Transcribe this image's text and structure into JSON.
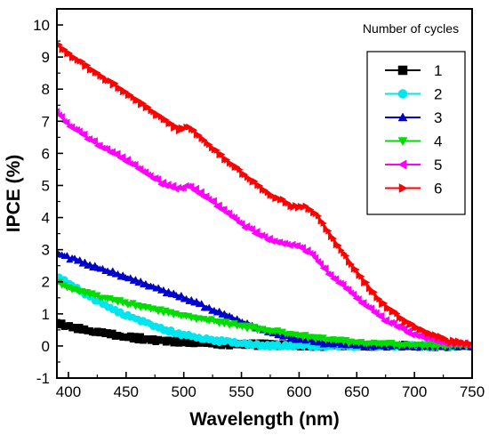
{
  "chart_data": {
    "type": "line",
    "xlabel": "Wavelength (nm)",
    "ylabel": "IPCE (%)",
    "xlim": [
      390,
      750
    ],
    "ylim": [
      -1,
      10.5
    ],
    "x_ticks": [
      400,
      450,
      500,
      550,
      600,
      650,
      700,
      750
    ],
    "y_ticks": [
      -1,
      0,
      1,
      2,
      3,
      4,
      5,
      6,
      7,
      8,
      9,
      10
    ],
    "grid": false,
    "legend": {
      "title": "Number of cycles",
      "placement": "top-right"
    },
    "series": [
      {
        "name": "1",
        "color": "#000000",
        "marker": "square",
        "x": [
          390,
          400,
          420,
          450,
          480,
          500,
          520,
          550,
          580,
          600,
          650,
          700,
          750
        ],
        "y": [
          0.7,
          0.6,
          0.45,
          0.28,
          0.18,
          0.12,
          0.08,
          0.05,
          0.03,
          0.02,
          0.0,
          0.0,
          0.0
        ]
      },
      {
        "name": "2",
        "color": "#00e5ee",
        "marker": "circle",
        "x": [
          390,
          400,
          420,
          450,
          480,
          500,
          520,
          550,
          570,
          600,
          650,
          700,
          750
        ],
        "y": [
          2.2,
          1.95,
          1.5,
          0.95,
          0.55,
          0.35,
          0.2,
          0.07,
          0.02,
          0.0,
          0.0,
          0.0,
          0.0
        ]
      },
      {
        "name": "3",
        "color": "#0000cc",
        "marker": "triangle-up",
        "x": [
          390,
          400,
          420,
          450,
          480,
          500,
          520,
          550,
          575,
          600,
          625,
          650,
          700,
          750
        ],
        "y": [
          2.9,
          2.75,
          2.5,
          2.15,
          1.75,
          1.5,
          1.2,
          0.75,
          0.42,
          0.2,
          0.07,
          0.02,
          0.0,
          0.0
        ]
      },
      {
        "name": "4",
        "color": "#00dd00",
        "marker": "triangle-down",
        "x": [
          390,
          400,
          420,
          450,
          480,
          500,
          520,
          550,
          580,
          600,
          630,
          650,
          700,
          750
        ],
        "y": [
          2.0,
          1.8,
          1.6,
          1.35,
          1.1,
          0.95,
          0.82,
          0.62,
          0.45,
          0.33,
          0.18,
          0.1,
          0.02,
          0.0
        ]
      },
      {
        "name": "5",
        "color": "#ff00ff",
        "marker": "triangle-left",
        "x": [
          390,
          400,
          420,
          450,
          480,
          495,
          505,
          520,
          550,
          575,
          600,
          610,
          625,
          650,
          675,
          700,
          725,
          750
        ],
        "y": [
          7.3,
          6.9,
          6.4,
          5.8,
          5.1,
          4.9,
          5.0,
          4.65,
          3.8,
          3.3,
          3.1,
          2.9,
          2.3,
          1.5,
          0.8,
          0.35,
          0.12,
          0.03
        ]
      },
      {
        "name": "6",
        "color": "#ff0000",
        "marker": "triangle-right",
        "x": [
          390,
          400,
          420,
          450,
          480,
          495,
          505,
          515,
          530,
          550,
          575,
          595,
          605,
          615,
          630,
          650,
          670,
          690,
          710,
          730,
          750
        ],
        "y": [
          9.4,
          9.1,
          8.6,
          7.9,
          7.1,
          6.75,
          6.8,
          6.5,
          6.0,
          5.4,
          4.7,
          4.35,
          4.35,
          4.1,
          3.3,
          2.3,
          1.4,
          0.8,
          0.4,
          0.15,
          0.05
        ]
      }
    ]
  }
}
